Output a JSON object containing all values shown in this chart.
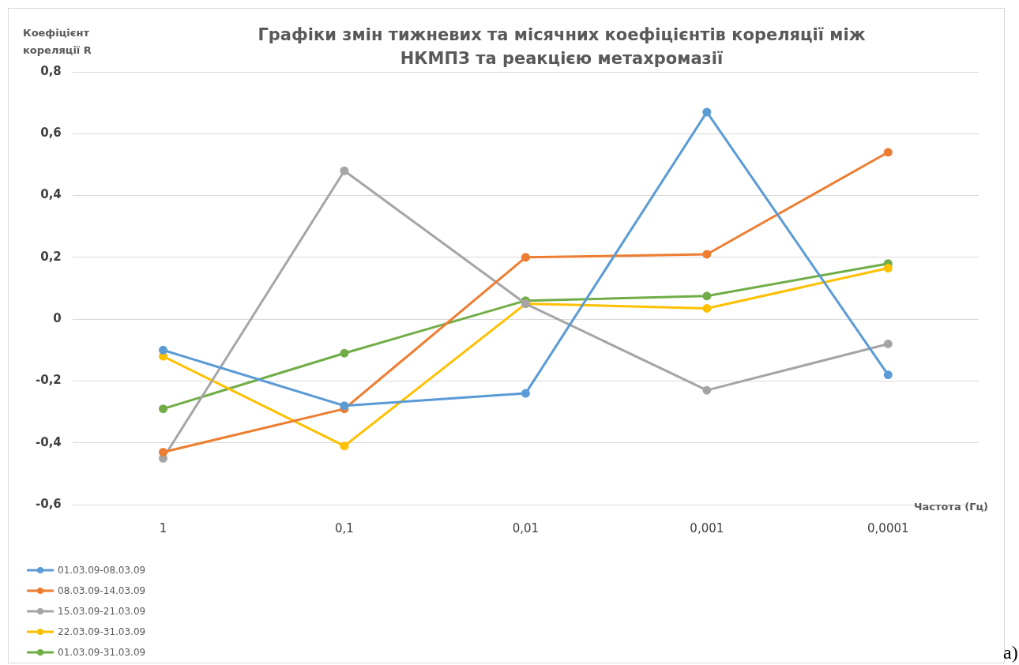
{
  "chart_data": {
    "type": "line",
    "title": "Графіки змін тижневих та місячних коефіцієнтів кореляції між НКМПЗ та реакцією метахромазії",
    "ylabel": "Коефіцієнт кореляції R",
    "xlabel": "Частота (Гц)",
    "annotations": [
      "а)"
    ],
    "categories": [
      "1",
      "0,1",
      "0,01",
      "0,001",
      "0,0001"
    ],
    "series": [
      {
        "name": "01.03.09-08.03.09",
        "color": "#5b9bd5",
        "values": [
          -0.1,
          -0.28,
          -0.24,
          0.67,
          -0.18
        ]
      },
      {
        "name": "08.03.09-14.03.09",
        "color": "#ed7d31",
        "values": [
          -0.43,
          -0.29,
          0.2,
          0.21,
          0.54
        ]
      },
      {
        "name": "15.03.09-21.03.09",
        "color": "#a5a5a5",
        "values": [
          -0.45,
          0.48,
          0.05,
          -0.23,
          -0.08
        ]
      },
      {
        "name": "22.03.09-31.03.09",
        "color": "#ffc000",
        "values": [
          -0.12,
          -0.41,
          0.05,
          0.035,
          0.165
        ]
      },
      {
        "name": "01.03.09-31.03.09",
        "color": "#70ad47",
        "values": [
          -0.29,
          -0.11,
          0.06,
          0.075,
          0.18
        ]
      }
    ],
    "ylim": [
      -0.6,
      0.8
    ],
    "yticks": [
      {
        "value": -0.6,
        "label": "-0,6"
      },
      {
        "value": -0.4,
        "label": "-0,4"
      },
      {
        "value": -0.2,
        "label": "-0,2"
      },
      {
        "value": 0,
        "label": "0"
      },
      {
        "value": 0.2,
        "label": "0,2"
      },
      {
        "value": 0.4,
        "label": "0,4"
      },
      {
        "value": 0.6,
        "label": "0,6"
      },
      {
        "value": 0.8,
        "label": "0,8"
      }
    ],
    "grid": "y",
    "legend": "bottom left",
    "marker": "circle",
    "line_style": "solid"
  }
}
